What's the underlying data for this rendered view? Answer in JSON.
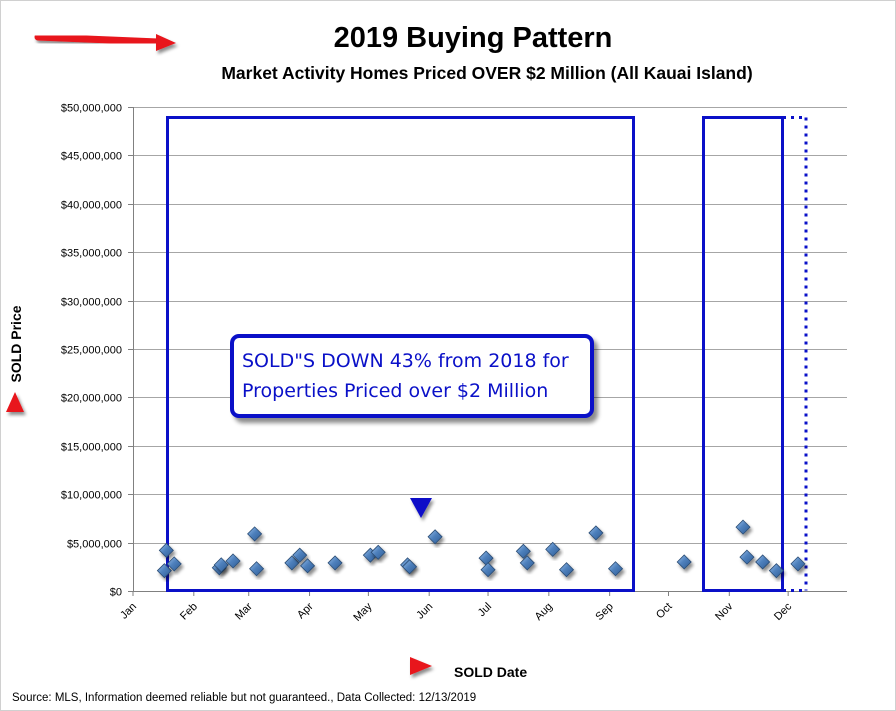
{
  "header": {
    "title": "2019 Buying Pattern",
    "subtitle": "Market Activity Homes Priced OVER $2 Million (All Kauai Island)"
  },
  "footer": {
    "source": "Source: MLS, Information deemed reliable but not guaranteed., Data Collected: 12/13/2019"
  },
  "callout": {
    "line1": "SOLD\"S DOWN 43% from 2018 for",
    "line2": "Properties Priced over $2 Million"
  },
  "colors": {
    "marker": "#4f81bd",
    "marker_edge": "#2c4d75",
    "frame": "#0a10c8",
    "arrow": "#e8141b",
    "grid": "#a6a6a6"
  },
  "chart_data": {
    "type": "scatter",
    "title": "2019 Buying Pattern",
    "subtitle": "Market Activity Homes Priced OVER $2 Million (All Kauai Island)",
    "xlabel": "SOLD Date",
    "ylabel": "SOLD Price",
    "x_tick_labels": [
      "Jan",
      "Feb",
      "Mar",
      "Apr",
      "May",
      "Jun",
      "Jul",
      "Aug",
      "Sep",
      "Oct",
      "Nov",
      "Dec"
    ],
    "y_tick_labels": [
      "$0",
      "$5,000,000",
      "$10,000,000",
      "$15,000,000",
      "$20,000,000",
      "$25,000,000",
      "$30,000,000",
      "$35,000,000",
      "$40,000,000",
      "$45,000,000",
      "$50,000,000"
    ],
    "xlim": [
      "2019-01-01",
      "2019-12-31"
    ],
    "ylim": [
      0,
      50000000
    ],
    "grid": true,
    "series": [
      {
        "points": [
          {
            "x": "2019-01-17",
            "y": 2100000
          },
          {
            "x": "2019-01-18",
            "y": 4200000
          },
          {
            "x": "2019-01-22",
            "y": 2800000
          },
          {
            "x": "2019-02-14",
            "y": 2400000
          },
          {
            "x": "2019-02-15",
            "y": 2700000
          },
          {
            "x": "2019-02-21",
            "y": 3100000
          },
          {
            "x": "2019-03-04",
            "y": 5900000
          },
          {
            "x": "2019-03-05",
            "y": 2300000
          },
          {
            "x": "2019-03-23",
            "y": 2900000
          },
          {
            "x": "2019-03-27",
            "y": 3700000
          },
          {
            "x": "2019-03-31",
            "y": 2600000
          },
          {
            "x": "2019-04-14",
            "y": 2900000
          },
          {
            "x": "2019-05-02",
            "y": 3700000
          },
          {
            "x": "2019-05-06",
            "y": 4000000
          },
          {
            "x": "2019-05-21",
            "y": 2700000
          },
          {
            "x": "2019-05-22",
            "y": 2500000
          },
          {
            "x": "2019-06-04",
            "y": 5600000
          },
          {
            "x": "2019-06-30",
            "y": 3400000
          },
          {
            "x": "2019-07-01",
            "y": 2200000
          },
          {
            "x": "2019-07-19",
            "y": 4100000
          },
          {
            "x": "2019-07-21",
            "y": 2900000
          },
          {
            "x": "2019-08-03",
            "y": 4300000
          },
          {
            "x": "2019-08-10",
            "y": 2200000
          },
          {
            "x": "2019-08-25",
            "y": 6000000
          },
          {
            "x": "2019-09-04",
            "y": 2300000
          },
          {
            "x": "2019-10-09",
            "y": 3000000
          },
          {
            "x": "2019-11-08",
            "y": 6600000
          },
          {
            "x": "2019-11-10",
            "y": 3500000
          },
          {
            "x": "2019-11-18",
            "y": 3000000
          },
          {
            "x": "2019-11-25",
            "y": 2100000
          },
          {
            "x": "2019-12-06",
            "y": 2800000
          }
        ]
      }
    ]
  }
}
